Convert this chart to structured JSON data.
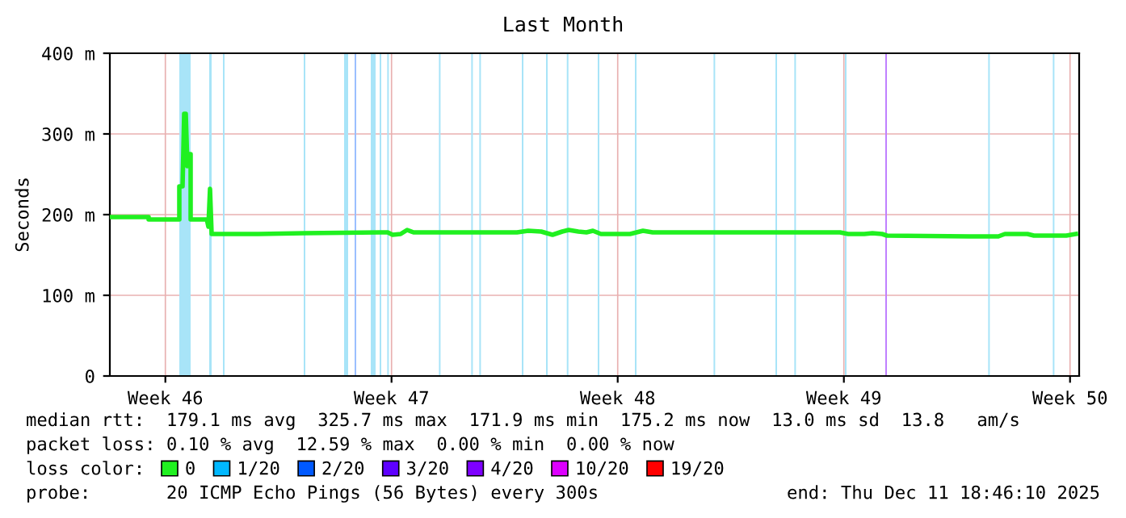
{
  "chart_data": {
    "type": "line",
    "title": "Last Month",
    "ylabel": "Seconds",
    "xlim": [
      "2025-11-11T18:46",
      "2025-12-11T18:46"
    ],
    "xticks": [
      {
        "value": "2025-11-13T12:00",
        "label": "Week 46"
      },
      {
        "value": "2025-11-20T12:00",
        "label": "Week 47"
      },
      {
        "value": "2025-11-27T12:00",
        "label": "Week 48"
      },
      {
        "value": "2025-12-04T12:00",
        "label": "Week 49"
      },
      {
        "value": "2025-12-11T12:00",
        "label": "Week 50"
      }
    ],
    "ylim": [
      0,
      400
    ],
    "yticks": [
      0,
      {
        "value": 100,
        "label": "100 m"
      },
      {
        "value": 200,
        "label": "200 m"
      },
      {
        "value": 300,
        "label": "300 m"
      },
      {
        "value": 400,
        "label": "400 m"
      }
    ],
    "grid": true,
    "legend": "bottom left",
    "legend_title": "loss color:",
    "series": [
      {
        "name": "0",
        "color": "#20f020",
        "x": [
          "2025-11-11T18:46",
          "2025-11-12T23:34",
          "2025-11-12T23:34",
          "2025-11-13T22:22",
          "2025-11-13T22:22",
          "2025-11-14T00:46",
          "2025-11-14T01:58",
          "2025-11-14T03:10",
          "2025-11-14T04:22",
          "2025-11-14T05:34",
          "2025-11-14T06:46",
          "2025-11-14T06:46",
          "2025-11-14T18:46",
          "2025-11-14T19:58",
          "2025-11-14T21:10",
          "2025-11-14T22:22",
          "2025-11-16T09:10",
          "2025-11-17T18:46",
          "2025-11-20T03:10",
          "2025-11-20T09:10",
          "2025-11-20T12:46",
          "2025-11-20T18:46",
          "2025-11-20T23:34",
          "2025-11-21T04:22",
          "2025-11-22T09:10",
          "2025-11-23T09:10",
          "2025-11-24T09:10",
          "2025-11-24T17:34",
          "2025-11-25T03:10",
          "2025-11-25T11:34",
          "2025-11-25T18:46",
          "2025-11-25T23:34",
          "2025-11-26T06:46",
          "2025-11-26T12:46",
          "2025-11-26T17:34",
          "2025-11-26T23:34",
          "2025-11-27T21:10",
          "2025-11-28T06:46",
          "2025-11-28T13:58",
          "2025-11-30T21:10",
          "2025-12-04T09:10",
          "2025-12-04T15:10",
          "2025-12-05T03:10",
          "2025-12-05T09:10",
          "2025-12-05T16:22",
          "2025-12-05T19:58",
          "2025-12-08T09:10",
          "2025-12-09T06:46",
          "2025-12-09T11:34",
          "2025-12-10T04:22",
          "2025-12-10T09:10",
          "2025-12-11T09:10",
          "2025-12-11T16:22"
        ],
        "values": [
          197,
          197,
          194,
          194,
          235,
          235,
          325,
          325,
          260,
          275,
          275,
          194,
          194,
          185,
          232,
          176,
          176,
          177,
          178,
          178,
          175,
          176,
          181,
          178,
          178,
          178,
          178,
          180,
          179,
          175,
          179,
          181,
          179,
          178,
          180,
          176,
          176,
          180,
          178,
          178,
          178,
          176,
          176,
          177,
          176,
          174,
          173,
          173,
          176,
          176,
          174,
          174,
          176
        ]
      },
      {
        "name": "1/20",
        "color": "#00b8ff"
      },
      {
        "name": "2/20",
        "color": "#0059ff"
      },
      {
        "name": "3/20",
        "color": "#5e00ff"
      },
      {
        "name": "4/20",
        "color": "#7e00ff"
      },
      {
        "name": "10/20",
        "color": "#dd00ff"
      },
      {
        "name": "19/20",
        "color": "#ff0000"
      }
    ],
    "bands": [
      {
        "axis": "x",
        "from": "2025-11-13T22:22",
        "to": "2025-11-14T06:46",
        "color": "#a8e4f8"
      },
      {
        "axis": "x",
        "from": "2025-11-14T20:34",
        "to": "2025-11-14T22:22",
        "color": "#a8e4f8"
      },
      {
        "axis": "x",
        "from": "2025-11-15T06:46",
        "to": "2025-11-15T07:58",
        "color": "#a8e4f8"
      },
      {
        "axis": "x",
        "from": "2025-11-17T18:46",
        "to": "2025-11-17T19:58",
        "color": "#a8e4f8"
      },
      {
        "axis": "x",
        "from": "2025-11-19T00:46",
        "to": "2025-11-19T03:46",
        "color": "#a8e4f8"
      },
      {
        "axis": "x",
        "from": "2025-11-19T08:34",
        "to": "2025-11-19T09:46",
        "color": "#9bbfff"
      },
      {
        "axis": "x",
        "from": "2025-11-19T20:34",
        "to": "2025-11-20T00:10",
        "color": "#a8e4f8"
      },
      {
        "axis": "x",
        "from": "2025-11-20T03:10",
        "to": "2025-11-20T04:22",
        "color": "#a8e4f8"
      },
      {
        "axis": "x",
        "from": "2025-11-20T08:48",
        "to": "2025-11-20T10:00",
        "color": "#a8e4f8"
      },
      {
        "axis": "x",
        "from": "2025-11-21T23:12",
        "to": "2025-11-22T00:24",
        "color": "#a8e4f8"
      },
      {
        "axis": "x",
        "from": "2025-11-22T23:12",
        "to": "2025-11-23T00:24",
        "color": "#a8e4f8"
      },
      {
        "axis": "x",
        "from": "2025-11-23T05:12",
        "to": "2025-11-23T06:24",
        "color": "#a8e4f8"
      },
      {
        "axis": "x",
        "from": "2025-11-24T12:46",
        "to": "2025-11-24T13:58",
        "color": "#a8e4f8"
      },
      {
        "axis": "x",
        "from": "2025-11-25T06:46",
        "to": "2025-11-25T07:58",
        "color": "#a8e4f8"
      },
      {
        "axis": "x",
        "from": "2025-11-25T22:12",
        "to": "2025-11-25T23:24",
        "color": "#a8e4f8"
      },
      {
        "axis": "x",
        "from": "2025-11-26T21:10",
        "to": "2025-11-26T22:22",
        "color": "#a8e4f8"
      },
      {
        "axis": "x",
        "from": "2025-11-28T00:46",
        "to": "2025-11-28T01:58",
        "color": "#a8e4f8"
      },
      {
        "axis": "x",
        "from": "2025-11-30T11:12",
        "to": "2025-11-30T12:24",
        "color": "#a8e4f8"
      },
      {
        "axis": "x",
        "from": "2025-12-02T09:10",
        "to": "2025-12-02T10:22",
        "color": "#a8e4f8"
      },
      {
        "axis": "x",
        "from": "2025-12-02T23:12",
        "to": "2025-12-03T00:24",
        "color": "#a8e4f8"
      },
      {
        "axis": "x",
        "from": "2025-12-04T12:46",
        "to": "2025-12-04T13:58",
        "color": "#a8e4f8"
      },
      {
        "axis": "x",
        "from": "2025-12-05T18:46",
        "to": "2025-12-05T19:58",
        "color": "#c080ff"
      },
      {
        "axis": "x",
        "from": "2025-12-08T23:12",
        "to": "2025-12-09T00:24",
        "color": "#a8e4f8"
      },
      {
        "axis": "x",
        "from": "2025-12-10T23:12",
        "to": "2025-12-11T00:24",
        "color": "#a8e4f8"
      }
    ],
    "annotations": [
      "median rtt:  179.1 ms avg  325.7 ms max  171.9 ms min  175.2 ms now  13.0 ms sd  13.8   am/s",
      "packet loss: 0.10 % avg  12.59 % max  0.00 % min  0.00 % now",
      "probe:       20 ICMP Echo Pings (56 Bytes) every 300s",
      "end: Thu Dec 11 18:46:10 2025"
    ]
  }
}
